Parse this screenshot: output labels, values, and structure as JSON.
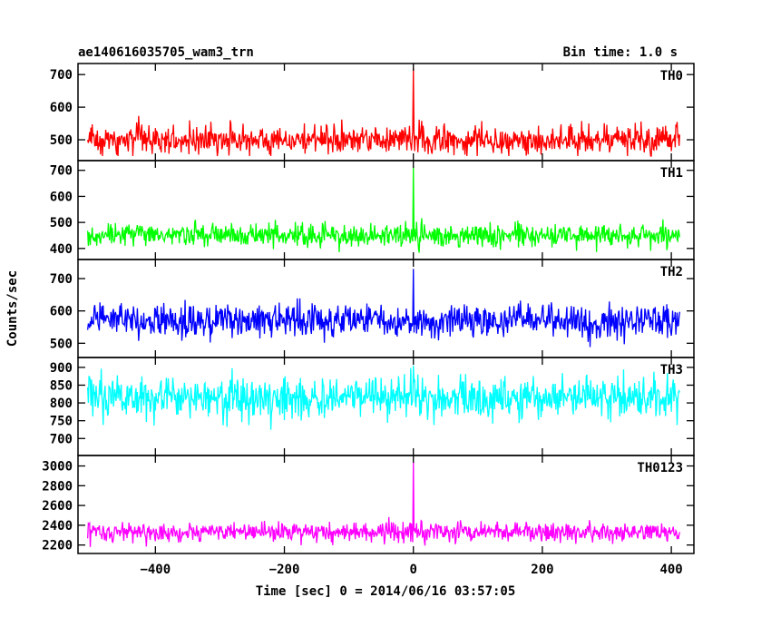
{
  "header": {
    "title": "ae140616035705_wam3_trn",
    "bin_time": "Bin time: 1.0 s"
  },
  "chart_data": {
    "type": "line",
    "ylabel": "Counts/sec",
    "xlabel": "Time [sec] 0 = 2014/06/16 03:57:05",
    "xlim": [
      -520,
      435
    ],
    "x_range": [
      -505,
      413
    ],
    "x_ticks": [
      -400,
      -200,
      0,
      200,
      400
    ],
    "x_tick_labels": [
      "−400",
      "−200",
      "0",
      "200",
      "400"
    ],
    "grid": false,
    "panels": [
      {
        "name": "TH0",
        "color": "#ff0000",
        "ylim": [
          450,
          720
        ],
        "y_ticks": [
          500,
          600,
          700
        ],
        "baseline": 500,
        "noise_std": 22,
        "spike_x": 0,
        "spike_peak": 720
      },
      {
        "name": "TH1",
        "color": "#00ff00",
        "ylim": [
          375,
          720
        ],
        "y_ticks": [
          400,
          500,
          600,
          700
        ],
        "baseline": 450,
        "noise_std": 22,
        "spike_x": 0,
        "spike_peak": 715
      },
      {
        "name": "TH2",
        "color": "#0000ff",
        "ylim": [
          470,
          745
        ],
        "y_ticks": [
          500,
          600,
          700
        ],
        "baseline": 570,
        "noise_std": 25,
        "spike_x": 0,
        "spike_peak": 730
      },
      {
        "name": "TH3",
        "color": "#00ffff",
        "ylim": [
          665,
          915
        ],
        "y_ticks": [
          700,
          750,
          800,
          850,
          900
        ],
        "baseline": 815,
        "noise_std": 30,
        "spike_x": 0,
        "spike_peak": 905
      },
      {
        "name": "TH0123",
        "color": "#ff00ff",
        "ylim": [
          2160,
          3060
        ],
        "y_ticks": [
          2200,
          2400,
          2600,
          2800,
          3000
        ],
        "baseline": 2330,
        "noise_std": 50,
        "spike_x": 0,
        "spike_peak": 3040
      }
    ]
  }
}
